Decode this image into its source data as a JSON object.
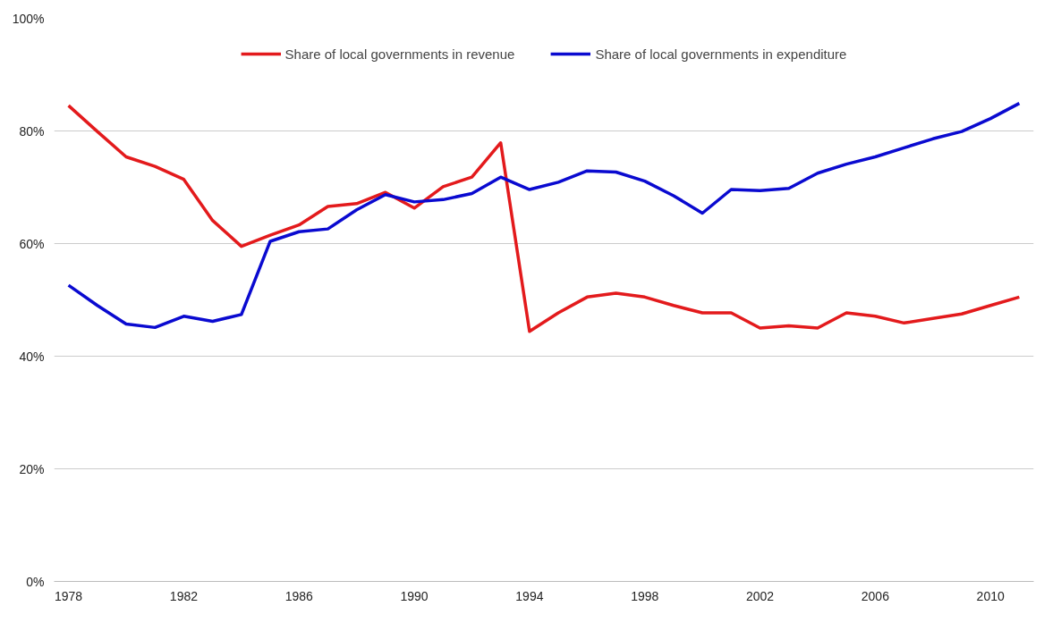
{
  "chart_data": {
    "type": "line",
    "categories": [
      "1978",
      null,
      null,
      null,
      "1982",
      null,
      null,
      null,
      "1986",
      null,
      null,
      null,
      "1990",
      null,
      null,
      null,
      "1994",
      null,
      null,
      null,
      "1998",
      null,
      null,
      null,
      "2002",
      null,
      null,
      null,
      "2006",
      null,
      null,
      null,
      "2010",
      null
    ],
    "series": [
      {
        "name": "Share of local governments in revenue",
        "color": "#e31a1c",
        "values": [
          84.5,
          79.9,
          75.4,
          73.7,
          71.4,
          64.1,
          59.5,
          61.5,
          63.3,
          66.6,
          67.1,
          69.1,
          66.3,
          70.1,
          71.8,
          77.9,
          44.4,
          47.7,
          50.5,
          51.2,
          50.5,
          49.0,
          47.7,
          47.7,
          45.0,
          45.4,
          45.0,
          47.7,
          47.1,
          45.9,
          46.7,
          47.5,
          49.0,
          50.5
        ]
      },
      {
        "name": "Share of local governments in expenditure",
        "color": "#0a0ad0",
        "values": [
          52.6,
          49.0,
          45.7,
          45.1,
          47.1,
          46.2,
          47.4,
          60.4,
          62.1,
          62.6,
          66.0,
          68.7,
          67.4,
          67.8,
          68.9,
          71.8,
          69.6,
          70.9,
          72.9,
          72.7,
          71.1,
          68.5,
          65.4,
          69.6,
          69.4,
          69.8,
          72.5,
          74.1,
          75.4,
          77.0,
          78.6,
          79.9,
          82.2,
          84.9
        ]
      }
    ],
    "ylim": [
      0,
      100
    ],
    "yticks": [
      {
        "value": 0,
        "label": "0%"
      },
      {
        "value": 20,
        "label": "20%"
      },
      {
        "value": 40,
        "label": "40%"
      },
      {
        "value": 60,
        "label": "60%"
      },
      {
        "value": 80,
        "label": "80%"
      },
      {
        "value": 100,
        "label": "100%"
      }
    ],
    "grid": "y",
    "legend": "top",
    "marker": "none",
    "line_style": "solid"
  }
}
